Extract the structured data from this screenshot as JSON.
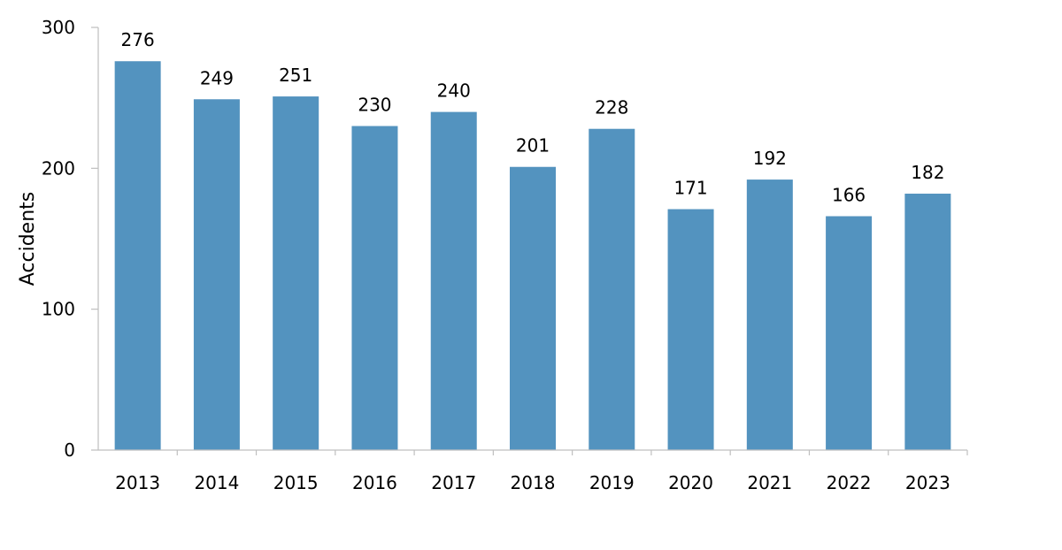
{
  "chart_data": {
    "type": "bar",
    "categories": [
      "2013",
      "2014",
      "2015",
      "2016",
      "2017",
      "2018",
      "2019",
      "2020",
      "2021",
      "2022",
      "2023"
    ],
    "values": [
      276,
      249,
      251,
      230,
      240,
      201,
      228,
      171,
      192,
      166,
      182
    ],
    "data_labels": [
      "276",
      "249",
      "251",
      "230",
      "240",
      "201",
      "228",
      "171",
      "192",
      "166",
      "182"
    ],
    "title": "",
    "xlabel": "",
    "ylabel": "Accidents",
    "ylim": [
      0,
      300
    ],
    "yticks": [
      0,
      100,
      200,
      300
    ],
    "ytick_labels": [
      "0",
      "100",
      "200",
      "300"
    ],
    "grid": false,
    "legend": "none",
    "bar_color": "#5393bf",
    "axis_color": "#bfbfbf"
  }
}
